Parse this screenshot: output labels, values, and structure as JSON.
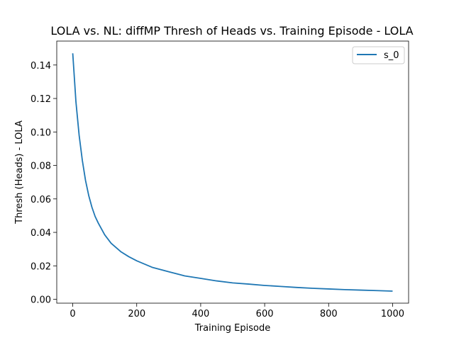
{
  "chart_data": {
    "type": "line",
    "title": "LOLA vs. NL: diffMP Thresh of Heads vs. Training Episode - LOLA",
    "xlabel": "Training Episode",
    "ylabel": "Thresh (Heads) - LOLA",
    "xlim": [
      -50,
      1050
    ],
    "ylim": [
      -0.0023,
      0.1543
    ],
    "x_ticks": [
      0,
      200,
      400,
      600,
      800,
      1000
    ],
    "x_tick_labels": [
      "0",
      "200",
      "400",
      "600",
      "800",
      "1000"
    ],
    "y_ticks": [
      0.0,
      0.02,
      0.04,
      0.06,
      0.08,
      0.1,
      0.12,
      0.14
    ],
    "y_tick_labels": [
      "0.00",
      "0.02",
      "0.04",
      "0.06",
      "0.08",
      "0.10",
      "0.12",
      "0.14"
    ],
    "grid": false,
    "legend_position": "top-right",
    "series": [
      {
        "name": "s_0",
        "color": "#1f77b4",
        "x": [
          0,
          10,
          20,
          30,
          40,
          50,
          60,
          70,
          80,
          100,
          120,
          150,
          175,
          200,
          250,
          300,
          350,
          400,
          450,
          500,
          550,
          600,
          650,
          700,
          750,
          800,
          850,
          900,
          950,
          1000
        ],
        "y": [
          0.147,
          0.118,
          0.098,
          0.083,
          0.071,
          0.062,
          0.055,
          0.0495,
          0.0455,
          0.0385,
          0.0335,
          0.0285,
          0.0255,
          0.023,
          0.019,
          0.0165,
          0.014,
          0.0125,
          0.011,
          0.0098,
          0.0091,
          0.0083,
          0.0077,
          0.0071,
          0.0066,
          0.0062,
          0.0058,
          0.0055,
          0.0052,
          0.0049
        ]
      }
    ]
  }
}
